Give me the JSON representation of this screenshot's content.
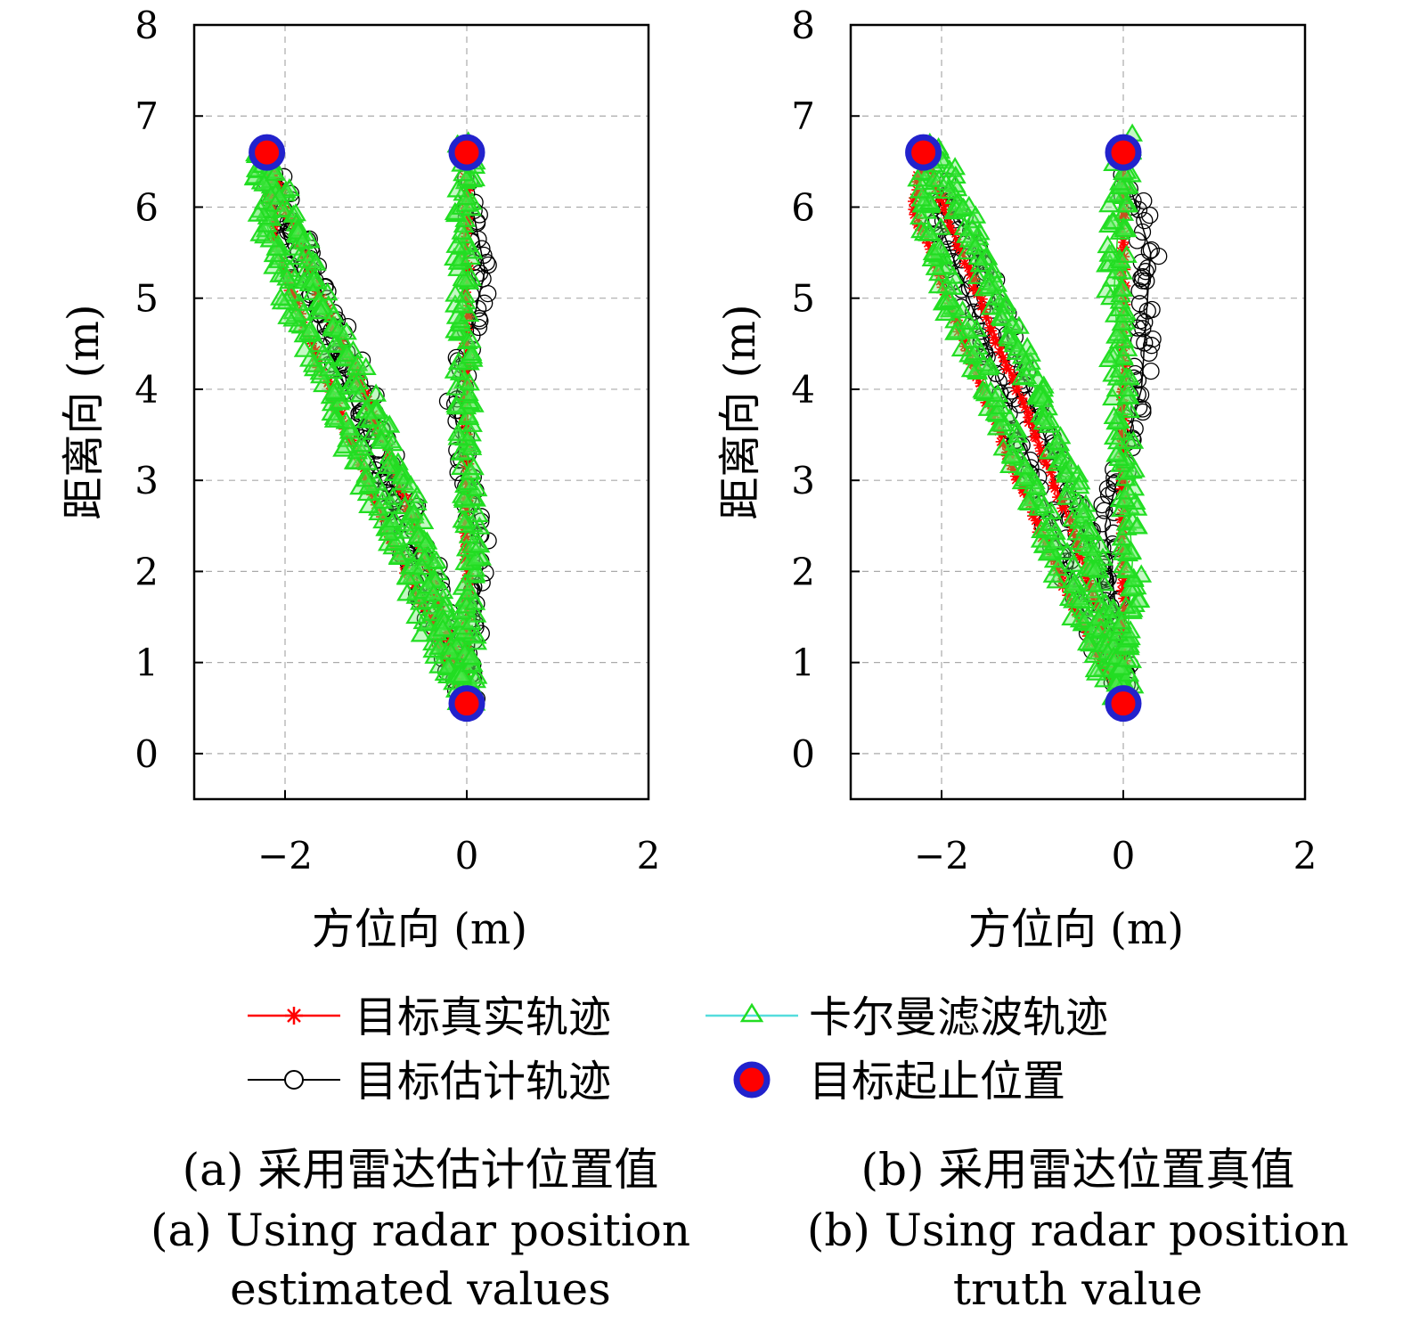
{
  "chart_data": [
    {
      "type": "line",
      "panel": "a",
      "xlabel": "方位向 (m)",
      "ylabel": "距离向 (m)",
      "xlim": [
        -3,
        2
      ],
      "ylim": [
        -0.5,
        8
      ],
      "xticks": [
        -2,
        0,
        2
      ],
      "yticks": [
        0,
        1,
        2,
        3,
        4,
        5,
        6,
        7,
        8
      ],
      "xtick_labels": [
        "−2",
        "0",
        "2"
      ],
      "ytick_labels": [
        "0",
        "1",
        "2",
        "3",
        "4",
        "5",
        "6",
        "7",
        "8"
      ],
      "grid": true,
      "legend_position": "bottom",
      "caption_cn": "(a) 采用雷达估计位置值",
      "caption_en_1": "(a) Using radar position",
      "caption_en_2": "estimated values",
      "series": [
        {
          "name": "目标真实轨迹",
          "color": "#ff0000",
          "marker": "asterisk",
          "x": [
            0,
            -0.3,
            -0.8,
            -1.3,
            -1.8,
            -2.1,
            -2.2,
            -2.0,
            -1.6,
            -1.1,
            -0.6,
            -0.2,
            0.0,
            0.0,
            0.0,
            0.0,
            0.0
          ],
          "y": [
            0.55,
            1.2,
            2.3,
            3.5,
            4.7,
            5.6,
            6.6,
            6.0,
            5.0,
            3.9,
            2.6,
            1.3,
            0.55,
            2.0,
            3.5,
            5.0,
            6.6
          ]
        },
        {
          "name": "卡尔曼滤波轨迹",
          "color": "#22dd22",
          "marker": "triangle",
          "x": [
            0,
            -0.35,
            -0.8,
            -1.35,
            -1.85,
            -2.2,
            -2.25,
            -2.0,
            -1.55,
            -1.05,
            -0.55,
            -0.15,
            0.0,
            0.05,
            0.0,
            -0.05,
            0.0
          ],
          "y": [
            0.6,
            1.3,
            2.4,
            3.6,
            4.8,
            5.8,
            6.6,
            6.0,
            4.9,
            3.8,
            2.5,
            1.2,
            0.6,
            2.1,
            3.6,
            5.1,
            6.7
          ]
        },
        {
          "name": "目标估计轨迹",
          "color": "#000000",
          "marker": "circle",
          "x": [
            0,
            -0.4,
            -0.75,
            -1.2,
            -1.7,
            -2.1,
            -2.15,
            -1.9,
            -1.5,
            -1.0,
            -0.5,
            -0.1,
            0.05,
            0.15,
            -0.15,
            0.2,
            0.0
          ],
          "y": [
            0.6,
            1.5,
            2.5,
            3.7,
            4.9,
            5.9,
            6.4,
            5.9,
            4.8,
            3.7,
            2.3,
            1.1,
            0.6,
            2.3,
            3.8,
            5.3,
            6.3
          ]
        },
        {
          "name": "目标起止位置",
          "color": "#ff0000",
          "edge_color": "#2222cc",
          "marker": "dot",
          "x": [
            -2.2,
            0.0,
            0.0
          ],
          "y": [
            6.6,
            6.6,
            0.55
          ]
        }
      ]
    },
    {
      "type": "line",
      "panel": "b",
      "xlabel": "方位向 (m)",
      "ylabel": "距离向 (m)",
      "xlim": [
        -3,
        2
      ],
      "ylim": [
        -0.5,
        8
      ],
      "xticks": [
        -2,
        0,
        2
      ],
      "yticks": [
        0,
        1,
        2,
        3,
        4,
        5,
        6,
        7,
        8
      ],
      "xtick_labels": [
        "−2",
        "0",
        "2"
      ],
      "ytick_labels": [
        "0",
        "1",
        "2",
        "3",
        "4",
        "5",
        "6",
        "7",
        "8"
      ],
      "grid": true,
      "legend_position": "bottom",
      "caption_cn": "(b) 采用雷达位置真值",
      "caption_en_1": "(b) Using radar position",
      "caption_en_2": "truth value",
      "series": [
        {
          "name": "目标真实轨迹",
          "color": "#ff0000",
          "marker": "asterisk",
          "x": [
            0,
            -0.4,
            -0.9,
            -1.4,
            -1.9,
            -2.3,
            -2.2,
            -1.9,
            -1.5,
            -1.0,
            -0.5,
            -0.15,
            0.0,
            0.0,
            0.0,
            0.0,
            0.0
          ],
          "y": [
            0.55,
            1.3,
            2.4,
            3.6,
            4.9,
            6.0,
            6.6,
            5.8,
            4.8,
            3.6,
            2.3,
            1.1,
            0.55,
            2.1,
            3.6,
            5.1,
            6.6
          ]
        },
        {
          "name": "卡尔曼滤波轨迹",
          "color": "#22dd22",
          "marker": "triangle",
          "x": [
            0,
            -0.35,
            -0.85,
            -1.35,
            -1.85,
            -2.2,
            -2.1,
            -1.75,
            -1.3,
            -0.8,
            -0.35,
            -0.1,
            0.0,
            0.1,
            0.0,
            -0.1,
            0.0
          ],
          "y": [
            0.6,
            1.3,
            2.5,
            3.7,
            4.9,
            6.0,
            6.7,
            5.9,
            4.8,
            3.6,
            2.3,
            1.1,
            0.6,
            2.1,
            3.6,
            5.1,
            6.7
          ]
        },
        {
          "name": "目标估计轨迹",
          "color": "#000000",
          "marker": "circle",
          "x": [
            0,
            -0.45,
            -0.8,
            -1.25,
            -1.7,
            -2.05,
            -2.0,
            -1.6,
            -1.2,
            -0.8,
            -0.3,
            -0.05,
            0.05,
            -0.2,
            0.2,
            0.3,
            0.05
          ],
          "y": [
            0.6,
            1.6,
            2.6,
            3.8,
            5.0,
            5.9,
            6.2,
            5.5,
            4.4,
            3.3,
            2.1,
            1.0,
            0.6,
            2.5,
            4.0,
            5.5,
            6.3
          ]
        },
        {
          "name": "目标起止位置",
          "color": "#ff0000",
          "edge_color": "#2222cc",
          "marker": "dot",
          "x": [
            -2.2,
            0.0,
            0.0
          ],
          "y": [
            6.6,
            6.6,
            0.55
          ]
        }
      ]
    }
  ],
  "legend": [
    {
      "label": "目标真实轨迹",
      "color": "#ff0000",
      "marker": "asterisk"
    },
    {
      "label": "卡尔曼滤波轨迹",
      "color": "#22dd22",
      "line_color": "#55dddd",
      "marker": "triangle"
    },
    {
      "label": "目标估计轨迹",
      "color": "#000000",
      "marker": "circle"
    },
    {
      "label": "目标起止位置",
      "color": "#ff0000",
      "edge_color": "#2222cc",
      "marker": "dot"
    }
  ]
}
